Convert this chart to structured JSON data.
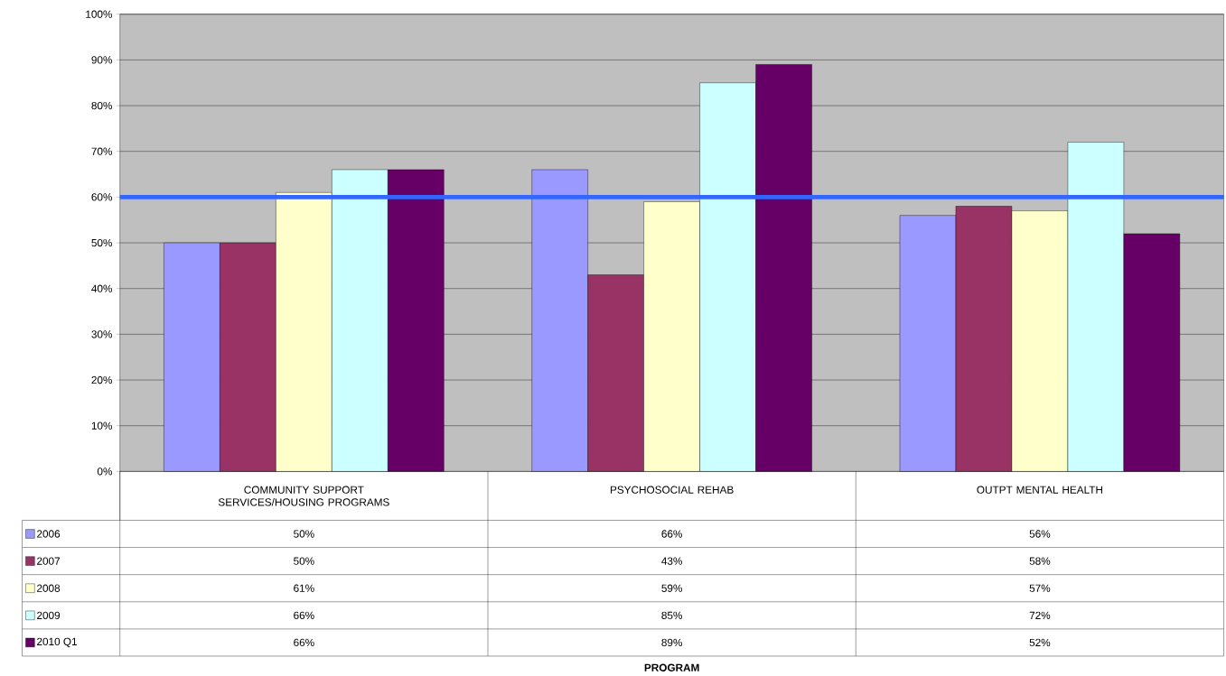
{
  "chart_data": {
    "type": "bar",
    "annotations": [
      "PROGRAM"
    ],
    "categories": [
      "COMMUNITY SUPPORT SERVICES/HOUSING PROGRAMS",
      "PSYCHOSOCIAL REHAB",
      "OUTPT MENTAL HEALTH"
    ],
    "series": [
      {
        "name": "2006",
        "color": "#9999ff",
        "values": [
          50,
          66,
          56
        ],
        "value_labels": [
          "50%",
          "66%",
          "56%"
        ]
      },
      {
        "name": "2007",
        "color": "#993366",
        "values": [
          50,
          43,
          58
        ],
        "value_labels": [
          "50%",
          "43%",
          "58%"
        ]
      },
      {
        "name": "2008",
        "color": "#ffffcc",
        "values": [
          61,
          59,
          57
        ],
        "value_labels": [
          "61%",
          "59%",
          "57%"
        ]
      },
      {
        "name": "2009",
        "color": "#ccffff",
        "values": [
          66,
          85,
          72
        ],
        "value_labels": [
          "66%",
          "85%",
          "72%"
        ]
      },
      {
        "name": "2010 Q1",
        "color": "#660066",
        "values": [
          66,
          89,
          52
        ],
        "value_labels": [
          "66%",
          "89%",
          "52%"
        ]
      }
    ],
    "ylim": [
      0,
      100
    ],
    "yticks": [
      {
        "value": 0,
        "label": "0%"
      },
      {
        "value": 10,
        "label": "10%"
      },
      {
        "value": 20,
        "label": "20%"
      },
      {
        "value": 30,
        "label": "30%"
      },
      {
        "value": 40,
        "label": "40%"
      },
      {
        "value": 50,
        "label": "50%"
      },
      {
        "value": 60,
        "label": "60%"
      },
      {
        "value": 70,
        "label": "70%"
      },
      {
        "value": 80,
        "label": "80%"
      },
      {
        "value": 90,
        "label": "90%"
      },
      {
        "value": 100,
        "label": "100%"
      }
    ],
    "grid": "y",
    "legend": "bottom left",
    "ref_lines": [
      {
        "axis": "y",
        "value": 60,
        "color": "#3366ff"
      }
    ]
  }
}
